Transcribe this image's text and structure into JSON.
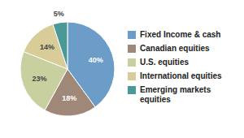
{
  "chart_data": {
    "type": "pie",
    "categories": [
      "Fixed Income & cash",
      "Canadian equities",
      "U.S. equities",
      "International equities",
      "Emerging markets\nequities"
    ],
    "values": [
      40,
      18,
      23,
      14,
      5
    ],
    "value_labels": [
      "40%",
      "18%",
      "23%",
      "14%",
      "5%"
    ],
    "data_labels": true,
    "colors": [
      "#6B9DC8",
      "#A08878",
      "#C8D0A0",
      "#D8CC98",
      "#4A9898"
    ],
    "legend": "right"
  }
}
